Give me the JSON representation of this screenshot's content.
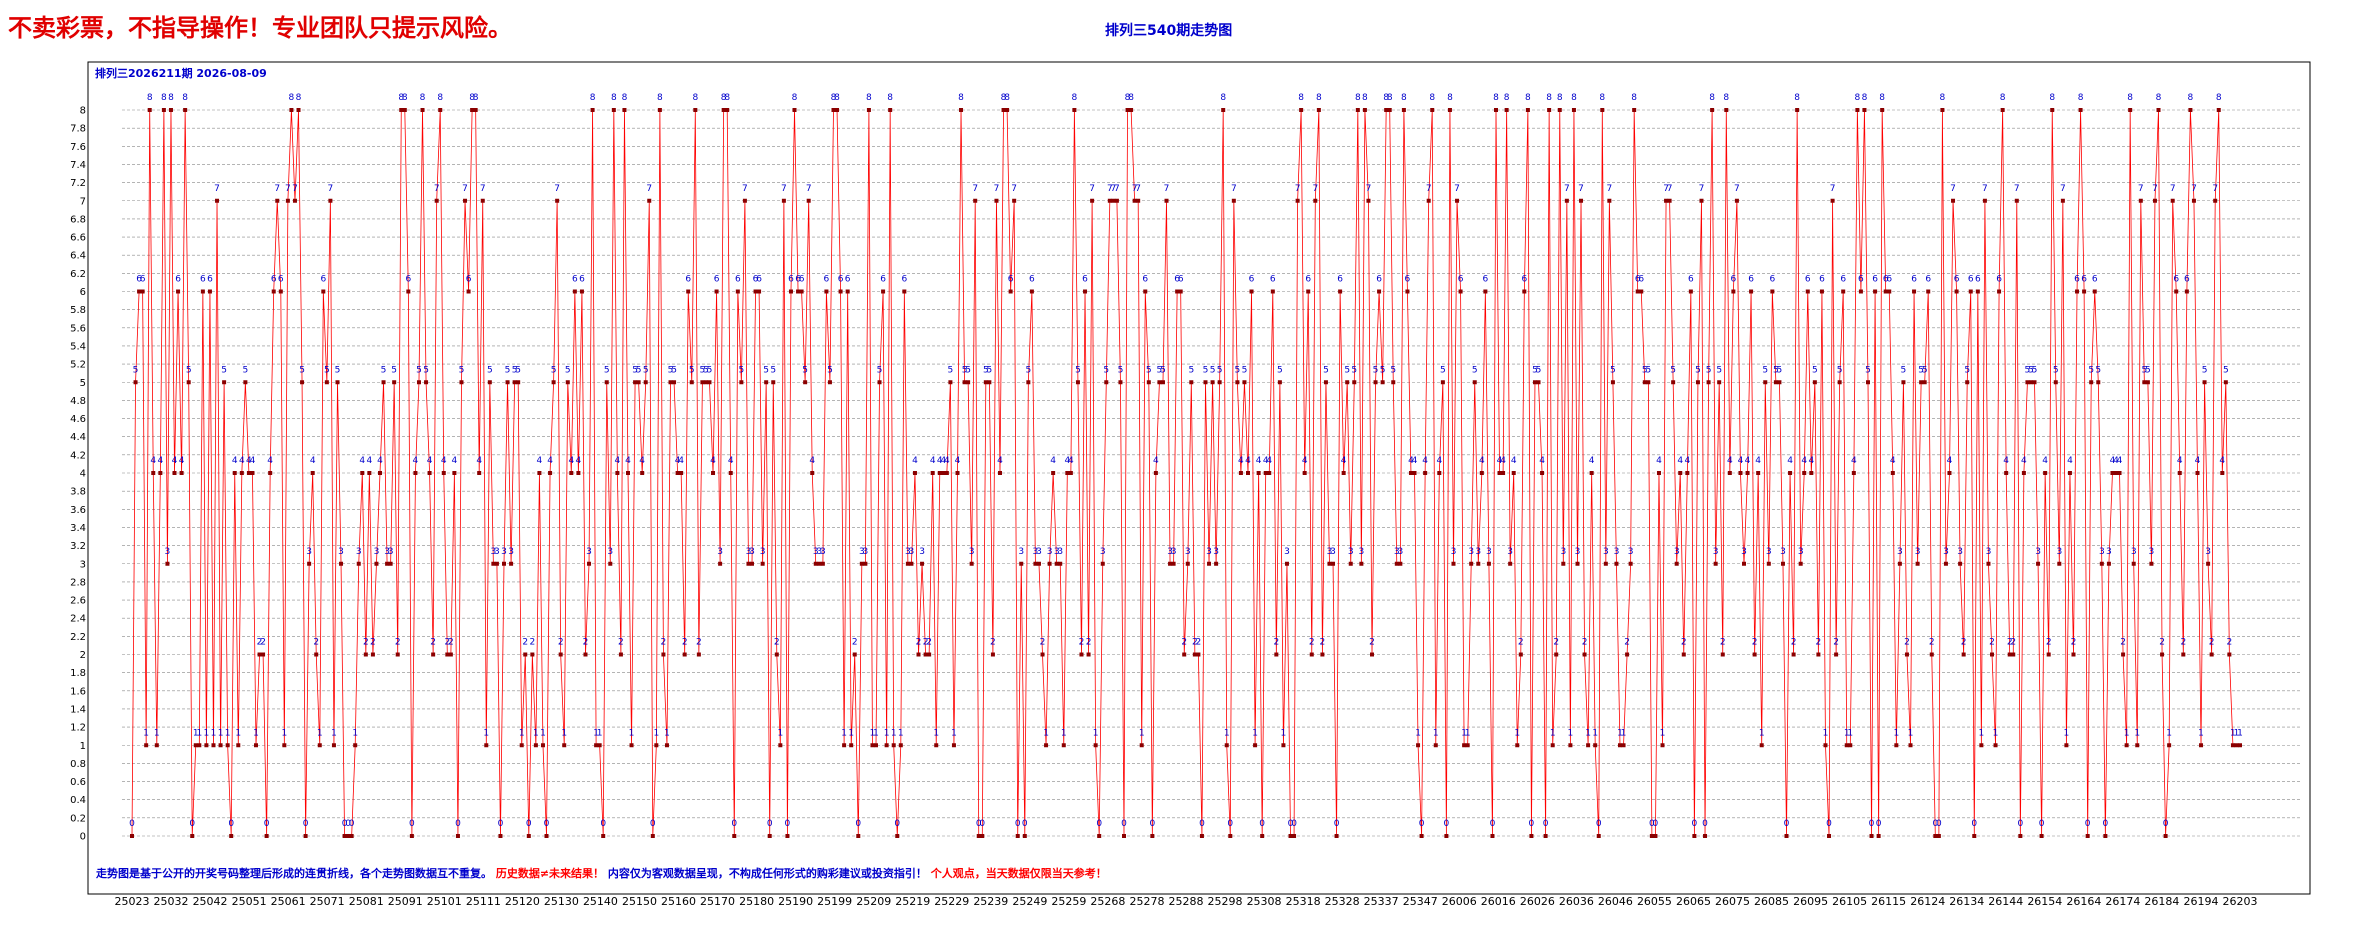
{
  "header": {
    "disclaimer": "不卖彩票，不指导操作！专业团队只提示风险。",
    "title": "排列三540期走势图"
  },
  "chart_data": {
    "type": "line",
    "subtitle": "排列三2026211期  2026-08-09",
    "footer_blue_1": "走势图是基于公开的开奖号码整理后形成的连贯折线，各个走势图数据互不重复。",
    "footer_red_1": "历史数据≠未来结果！",
    "footer_blue_2": "内容仅为客观数据呈现，不构成任何形式的购彩建议或投资指引！",
    "footer_red_2": "个人观点，当天数据仅限当天参考！",
    "xlabel": "",
    "ylabel": "",
    "ylim": [
      0,
      8
    ],
    "y_ticks": [
      "0",
      "0.2",
      "0.4",
      "0.6",
      "0.8",
      "1",
      "1.2",
      "1.4",
      "1.6",
      "1.8",
      "2",
      "2.2",
      "2.4",
      "2.6",
      "2.8",
      "3",
      "3.2",
      "3.4",
      "3.6",
      "3.8",
      "4",
      "4.2",
      "4.4",
      "4.6",
      "4.8",
      "5",
      "5.2",
      "5.4",
      "5.6",
      "5.8",
      "6",
      "6.2",
      "6.4",
      "6.6",
      "6.8",
      "7",
      "7.2",
      "7.4",
      "7.6",
      "7.8",
      "8"
    ],
    "x_tick_labels": [
      "25023",
      "25032",
      "25042",
      "25051",
      "25061",
      "25071",
      "25081",
      "25091",
      "25101",
      "25111",
      "25120",
      "25130",
      "25140",
      "25150",
      "25160",
      "25170",
      "25180",
      "25190",
      "25199",
      "25209",
      "25219",
      "25229",
      "25239",
      "25249",
      "25259",
      "25268",
      "25278",
      "25288",
      "25298",
      "25308",
      "25318",
      "25328",
      "25337",
      "25347",
      "26006",
      "26016",
      "26026",
      "26036",
      "26046",
      "26055",
      "26065",
      "26075",
      "26085",
      "26095",
      "26105",
      "26115",
      "26124",
      "26134",
      "26144",
      "26154",
      "26164",
      "26174",
      "26184",
      "26194",
      "26203"
    ],
    "grid": true,
    "colors": {
      "line": "#ff0000",
      "marker": "#8b0000",
      "label": "#0000cc",
      "footer_blue": "#0000cc",
      "footer_red": "#ff0000"
    },
    "series": [
      {
        "values": [
          0,
          5,
          6,
          6,
          1,
          8,
          4,
          1,
          4,
          8,
          3,
          8,
          4,
          6,
          4,
          8,
          5,
          0,
          1,
          1,
          6,
          1,
          6,
          1,
          7,
          1,
          5,
          1,
          0,
          4,
          1,
          4,
          5,
          4,
          4,
          1,
          2,
          2,
          0,
          4,
          6,
          7,
          6,
          1,
          7,
          8,
          7,
          8,
          5,
          0,
          3,
          4,
          2,
          1,
          6,
          5,
          7,
          1,
          5,
          3,
          0,
          0,
          0,
          1,
          3,
          4,
          2,
          4,
          2,
          3,
          4,
          5,
          3,
          3,
          5,
          2,
          8,
          8,
          6,
          0,
          4,
          5,
          8,
          5,
          4,
          2,
          7,
          8,
          4,
          2,
          2,
          4,
          0,
          5,
          7,
          6,
          8,
          8,
          4,
          7,
          1,
          5,
          3,
          3,
          0,
          3,
          5,
          3,
          5,
          5,
          1,
          2,
          0,
          2,
          1,
          4,
          1,
          0,
          4,
          5,
          7,
          2,
          1,
          5,
          4,
          6,
          4,
          6,
          2,
          3,
          8,
          1,
          1,
          0,
          5,
          3,
          8,
          4,
          2,
          8,
          4,
          1,
          5,
          5,
          4,
          5,
          7,
          0,
          1,
          8,
          2,
          1,
          5,
          5,
          4,
          4,
          2,
          6,
          5,
          8,
          2,
          5,
          5,
          5,
          4,
          6,
          3,
          8,
          8,
          4,
          0,
          6,
          5,
          7,
          3,
          3,
          6,
          6,
          3,
          5,
          0,
          5,
          2,
          1,
          7,
          0,
          6,
          8,
          6,
          6,
          5,
          7,
          4,
          3,
          3,
          3,
          6,
          5,
          8,
          8,
          6,
          1,
          6,
          1,
          2,
          0,
          3,
          3,
          8,
          1,
          1,
          5,
          6,
          1,
          8,
          1,
          0,
          1,
          6,
          3,
          3,
          4,
          2,
          3,
          2,
          2,
          4,
          1,
          4,
          4,
          4,
          5,
          1,
          4,
          8,
          5,
          5,
          3,
          7,
          0,
          0,
          5,
          5,
          2,
          7,
          4,
          8,
          8,
          6,
          7,
          0,
          3,
          0,
          5,
          6,
          3,
          3,
          2,
          1,
          3,
          4,
          3,
          3,
          1,
          4,
          4,
          8,
          5,
          2,
          6,
          2,
          7,
          1,
          0,
          3,
          5,
          7,
          7,
          7,
          5,
          0,
          8,
          8,
          7,
          7,
          1,
          6,
          5,
          0,
          4,
          5,
          5,
          7,
          3,
          3,
          6,
          6,
          2,
          3,
          5,
          2,
          2,
          0,
          5,
          3,
          5,
          3,
          5,
          8,
          1,
          0,
          7,
          5,
          4,
          5,
          4,
          6,
          1,
          4,
          0,
          4,
          4,
          6,
          2,
          5,
          1,
          3,
          0,
          0,
          7,
          8,
          4,
          6,
          2,
          7,
          8,
          2,
          5,
          3,
          3,
          0,
          6,
          4,
          5,
          3,
          5,
          8,
          3,
          8,
          7,
          2,
          5,
          6,
          5,
          8,
          8,
          5,
          3,
          3,
          8,
          6,
          4,
          4,
          1,
          0,
          4,
          7,
          8,
          1,
          4,
          5,
          0,
          8,
          3,
          7,
          6,
          1,
          1,
          3,
          5,
          3,
          4,
          6,
          3,
          0,
          8,
          4,
          4,
          8,
          3,
          4,
          1,
          2,
          6,
          8,
          0,
          5,
          5,
          4,
          0,
          8,
          1,
          2,
          8,
          3,
          7,
          1,
          8,
          3,
          7,
          2,
          1,
          4,
          1,
          0,
          8,
          3,
          7,
          5,
          3,
          1,
          1,
          2,
          3,
          8,
          6,
          6,
          5,
          5,
          0,
          0,
          4,
          1,
          7,
          7,
          5,
          3,
          4,
          2,
          4,
          6,
          0,
          5,
          7,
          0,
          5,
          8,
          3,
          5,
          2,
          8,
          4,
          6,
          7,
          4,
          3,
          4,
          6,
          2,
          4,
          1,
          5,
          3,
          6,
          5,
          5,
          3,
          0,
          4,
          2,
          8,
          3,
          4,
          6,
          4,
          5,
          2,
          6,
          1,
          0,
          7,
          2,
          5,
          6,
          1,
          1,
          4,
          8,
          6,
          8,
          5,
          0,
          6,
          0,
          8,
          6,
          6,
          4,
          1,
          3,
          5,
          2,
          1,
          6,
          3,
          5,
          5,
          6,
          2,
          0,
          0,
          8,
          3,
          4,
          7,
          6,
          3,
          2,
          5,
          6,
          0,
          6,
          1,
          7,
          3,
          2,
          1,
          6,
          8,
          4,
          2,
          2,
          7,
          0,
          4,
          5,
          5,
          5,
          3,
          0,
          4,
          2,
          8,
          5,
          3,
          7,
          1,
          4,
          2,
          6,
          8,
          6,
          0,
          5,
          6,
          5,
          3,
          0,
          3,
          4,
          4,
          4,
          2,
          1,
          8,
          3,
          1,
          7,
          5,
          5,
          3,
          7,
          8,
          2,
          0,
          1,
          7,
          6,
          4,
          2,
          6,
          8,
          7,
          4,
          1,
          5,
          3,
          2,
          7,
          8,
          4,
          5,
          2,
          1,
          1,
          1
        ]
      }
    ]
  }
}
